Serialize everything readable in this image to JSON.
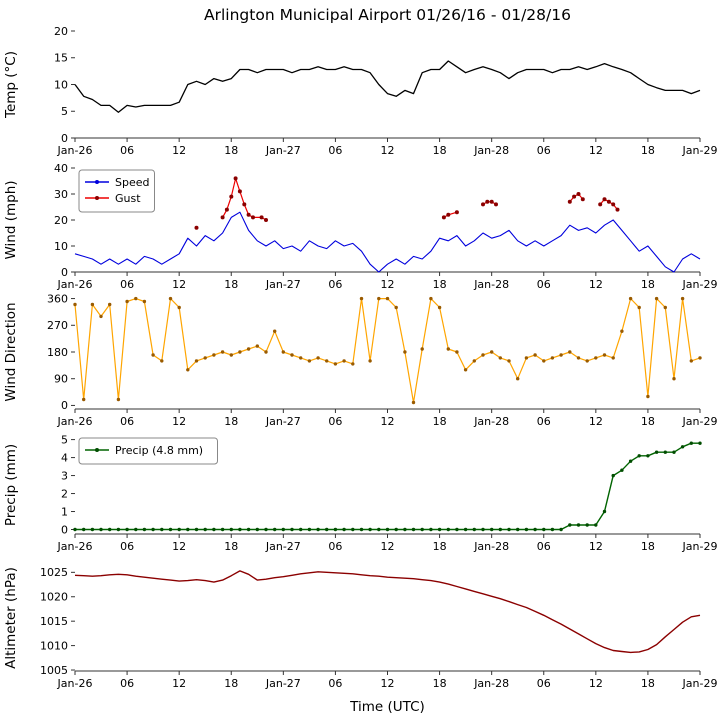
{
  "title": "Arlington Municipal Airport 01/26/16 - 01/28/16",
  "xlabel": "Time (UTC)",
  "x_tick_hours": [
    0,
    6,
    12,
    18,
    24,
    30,
    36,
    42,
    48,
    54,
    60,
    66,
    72
  ],
  "x_tick_labels": [
    "Jan-26",
    "06",
    "12",
    "18",
    "Jan-27",
    "06",
    "12",
    "18",
    "Jan-28",
    "06",
    "12",
    "18",
    "Jan-29"
  ],
  "chart_data": [
    {
      "id": "temp",
      "type": "line",
      "ylabel": "Temp (°C)",
      "yticks": [
        0,
        5,
        10,
        15,
        20
      ],
      "ylim": [
        0,
        20
      ],
      "legend": false,
      "series": [
        {
          "name": "Temp",
          "color": "#000000",
          "width": 1.3,
          "values": [
            10,
            7.8,
            7.2,
            6.1,
            6.1,
            4.8,
            6.1,
            5.8,
            6.1,
            6.1,
            6.1,
            6.1,
            6.7,
            10,
            10.6,
            10,
            11.1,
            10.6,
            11.1,
            12.8,
            12.8,
            12.2,
            12.8,
            12.8,
            12.8,
            12.2,
            12.8,
            12.8,
            13.3,
            12.8,
            12.8,
            13.3,
            12.8,
            12.8,
            12.2,
            10,
            8.3,
            7.8,
            8.9,
            8.3,
            12.2,
            12.8,
            12.8,
            14.4,
            13.3,
            12.2,
            12.8,
            13.3,
            12.8,
            12.2,
            11.1,
            12.2,
            12.8,
            12.8,
            12.8,
            12.2,
            12.8,
            12.8,
            13.3,
            12.8,
            13.3,
            13.9,
            13.3,
            12.8,
            12.2,
            11.1,
            10,
            9.4,
            8.9,
            8.9,
            8.9,
            8.3,
            8.9
          ]
        }
      ]
    },
    {
      "id": "wind",
      "type": "line",
      "ylabel": "Wind (mph)",
      "yticks": [
        0,
        10,
        20,
        30,
        40
      ],
      "ylim": [
        0,
        40
      ],
      "legend": true,
      "series": [
        {
          "name": "Speed",
          "color": "#0000dd",
          "width": 1.1,
          "values": [
            7,
            6,
            5,
            3,
            5,
            3,
            5,
            3,
            6,
            5,
            3,
            5,
            7,
            13,
            10,
            14,
            12,
            15,
            21,
            23,
            16,
            12,
            10,
            12,
            9,
            10,
            8,
            12,
            10,
            9,
            12,
            10,
            11,
            8,
            3,
            0,
            3,
            5,
            3,
            6,
            5,
            8,
            13,
            12,
            14,
            10,
            12,
            15,
            13,
            14,
            16,
            12,
            10,
            12,
            10,
            12,
            14,
            18,
            16,
            17,
            15,
            18,
            20,
            16,
            12,
            8,
            10,
            6,
            2,
            0,
            5,
            7,
            5
          ]
        },
        {
          "name": "Gust",
          "color": "#ee0000",
          "width": 1.2,
          "marker": "#8b0000",
          "points": [
            [
              14,
              17
            ],
            [
              17,
              21
            ],
            [
              17.5,
              24
            ],
            [
              18,
              29
            ],
            [
              18.5,
              36
            ],
            [
              19,
              31
            ],
            [
              19.5,
              26
            ],
            [
              20,
              22
            ],
            [
              20.5,
              21
            ],
            [
              21.5,
              21
            ],
            [
              22,
              20
            ],
            [
              42.5,
              21
            ],
            [
              43,
              22
            ],
            [
              44,
              23
            ],
            [
              47,
              26
            ],
            [
              47.5,
              27
            ],
            [
              48,
              27
            ],
            [
              48.5,
              26
            ],
            [
              57,
              27
            ],
            [
              57.5,
              29
            ],
            [
              58,
              30
            ],
            [
              58.5,
              28
            ],
            [
              60.5,
              26
            ],
            [
              61,
              28
            ],
            [
              61.5,
              27
            ],
            [
              62,
              26
            ],
            [
              62.5,
              24
            ]
          ]
        }
      ]
    },
    {
      "id": "winddir",
      "type": "line",
      "ylabel": "Wind Direction",
      "yticks": [
        0,
        90,
        180,
        270,
        360
      ],
      "ylim": [
        -12,
        372
      ],
      "legend": false,
      "series": [
        {
          "name": "Direction",
          "color": "#ffa500",
          "width": 1.2,
          "marker": "#9a5b00",
          "values": [
            340,
            20,
            340,
            300,
            340,
            20,
            350,
            360,
            350,
            170,
            150,
            360,
            330,
            120,
            150,
            160,
            170,
            180,
            170,
            180,
            190,
            200,
            180,
            250,
            180,
            170,
            160,
            150,
            160,
            150,
            140,
            150,
            140,
            360,
            150,
            360,
            360,
            330,
            180,
            10,
            190,
            360,
            330,
            190,
            180,
            120,
            150,
            170,
            180,
            160,
            150,
            90,
            160,
            170,
            150,
            160,
            170,
            180,
            160,
            150,
            160,
            170,
            160,
            250,
            360,
            330,
            30,
            360,
            330,
            90,
            360,
            150,
            160
          ]
        }
      ]
    },
    {
      "id": "precip",
      "type": "line",
      "ylabel": "Precip (mm)",
      "yticks": [
        0,
        1,
        2,
        3,
        4,
        5
      ],
      "ylim": [
        -0.25,
        5.2
      ],
      "legend": true,
      "series": [
        {
          "name": "Precip (4.8 mm)",
          "color": "#006400",
          "width": 1.4,
          "marker": "#004d00",
          "values": [
            0,
            0,
            0,
            0,
            0,
            0,
            0,
            0,
            0,
            0,
            0,
            0,
            0,
            0,
            0,
            0,
            0,
            0,
            0,
            0,
            0,
            0,
            0,
            0,
            0,
            0,
            0,
            0,
            0,
            0,
            0,
            0,
            0,
            0,
            0,
            0,
            0,
            0,
            0,
            0,
            0,
            0,
            0,
            0,
            0,
            0,
            0,
            0,
            0,
            0,
            0,
            0,
            0,
            0,
            0,
            0,
            0,
            0.25,
            0.25,
            0.25,
            0.25,
            1.0,
            3.0,
            3.3,
            3.8,
            4.1,
            4.1,
            4.3,
            4.3,
            4.3,
            4.6,
            4.8,
            4.8
          ]
        }
      ]
    },
    {
      "id": "altimeter",
      "type": "line",
      "ylabel": "Altimeter (hPa)",
      "yticks": [
        1005,
        1010,
        1015,
        1020,
        1025
      ],
      "ylim": [
        1004.8,
        1026.5
      ],
      "legend": false,
      "series": [
        {
          "name": "Altimeter",
          "color": "#8b0000",
          "width": 1.4,
          "values": [
            1024.4,
            1024.3,
            1024.2,
            1024.3,
            1024.5,
            1024.6,
            1024.5,
            1024.2,
            1024.0,
            1023.8,
            1023.6,
            1023.4,
            1023.2,
            1023.3,
            1023.5,
            1023.3,
            1023.0,
            1023.4,
            1024.3,
            1025.3,
            1024.6,
            1023.4,
            1023.6,
            1023.9,
            1024.1,
            1024.4,
            1024.7,
            1024.9,
            1025.1,
            1025.0,
            1024.9,
            1024.8,
            1024.7,
            1024.5,
            1024.3,
            1024.2,
            1024.0,
            1023.9,
            1023.8,
            1023.7,
            1023.5,
            1023.3,
            1023.0,
            1022.6,
            1022.1,
            1021.6,
            1021.1,
            1020.6,
            1020.1,
            1019.6,
            1019.0,
            1018.4,
            1017.8,
            1017.0,
            1016.2,
            1015.3,
            1014.4,
            1013.4,
            1012.4,
            1011.4,
            1010.4,
            1009.6,
            1009.0,
            1008.8,
            1008.6,
            1008.7,
            1009.2,
            1010.2,
            1011.8,
            1013.3,
            1014.8,
            1015.9,
            1016.2
          ]
        }
      ]
    }
  ]
}
